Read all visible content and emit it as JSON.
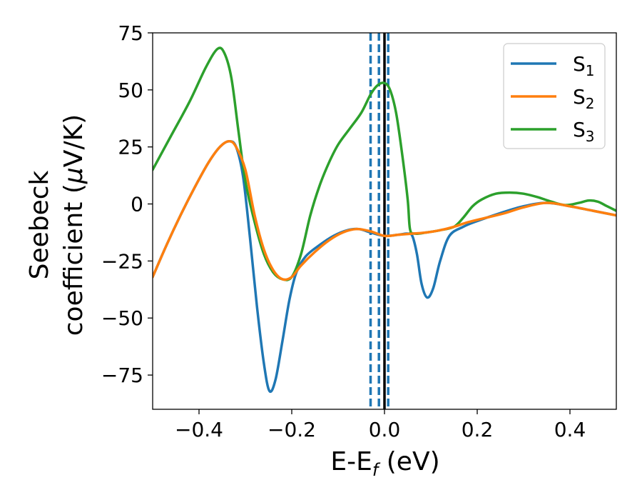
{
  "chart_data": {
    "type": "line",
    "xlabel": {
      "main": "E-E",
      "sub": "f",
      "suffix": " (eV)"
    },
    "ylabel": {
      "line1": "Seebeck",
      "line2_prefix": "coefficient  (",
      "mu": "μ",
      "line2_suffix": "V/K)"
    },
    "xlim": [
      -0.5,
      0.5
    ],
    "ylim": [
      -90,
      75
    ],
    "xticks": [
      {
        "value": -0.4,
        "label": "−0.4"
      },
      {
        "value": -0.2,
        "label": "−0.2"
      },
      {
        "value": 0.0,
        "label": "0.0"
      },
      {
        "value": 0.2,
        "label": "0.2"
      },
      {
        "value": 0.4,
        "label": "0.4"
      }
    ],
    "yticks": [
      {
        "value": 75,
        "label": "75"
      },
      {
        "value": 50,
        "label": "50"
      },
      {
        "value": 25,
        "label": "25"
      },
      {
        "value": 0,
        "label": "0"
      },
      {
        "value": -25,
        "label": "−25"
      },
      {
        "value": -50,
        "label": "−50"
      },
      {
        "value": -75,
        "label": "−75"
      }
    ],
    "grid": false,
    "legend_position": "top-right",
    "vlines": [
      {
        "x": -0.03,
        "style": "dashed",
        "color": "#1f77b4"
      },
      {
        "x": -0.012,
        "style": "dashed",
        "color": "#1f77b4"
      },
      {
        "x": 0.008,
        "style": "dashed",
        "color": "#1f77b4"
      },
      {
        "x": 0.0,
        "style": "solid",
        "color": "#000000"
      }
    ],
    "series": [
      {
        "name": "S",
        "sub": "1",
        "color": "#1f77b4",
        "points": [
          [
            -0.5,
            -32
          ],
          [
            -0.47,
            -18
          ],
          [
            -0.44,
            -5
          ],
          [
            -0.41,
            7
          ],
          [
            -0.38,
            18
          ],
          [
            -0.355,
            25
          ],
          [
            -0.335,
            27.5
          ],
          [
            -0.32,
            25
          ],
          [
            -0.305,
            12
          ],
          [
            -0.29,
            -15
          ],
          [
            -0.275,
            -45
          ],
          [
            -0.26,
            -70
          ],
          [
            -0.248,
            -82
          ],
          [
            -0.235,
            -77
          ],
          [
            -0.22,
            -60
          ],
          [
            -0.205,
            -42
          ],
          [
            -0.19,
            -30
          ],
          [
            -0.17,
            -23
          ],
          [
            -0.14,
            -18
          ],
          [
            -0.11,
            -14
          ],
          [
            -0.08,
            -11.5
          ],
          [
            -0.055,
            -11
          ],
          [
            -0.03,
            -12.5
          ],
          [
            0.0,
            -14
          ],
          [
            0.03,
            -13.5
          ],
          [
            0.05,
            -13
          ],
          [
            0.06,
            -14
          ],
          [
            0.07,
            -22
          ],
          [
            0.08,
            -35
          ],
          [
            0.092,
            -41
          ],
          [
            0.105,
            -37
          ],
          [
            0.12,
            -25
          ],
          [
            0.14,
            -14
          ],
          [
            0.17,
            -10
          ],
          [
            0.2,
            -7.5
          ],
          [
            0.25,
            -4
          ],
          [
            0.3,
            -1
          ],
          [
            0.35,
            0.5
          ],
          [
            0.4,
            -1
          ],
          [
            0.45,
            -3
          ],
          [
            0.5,
            -5
          ]
        ]
      },
      {
        "name": "S",
        "sub": "2",
        "color": "#ff7f0e",
        "points": [
          [
            -0.5,
            -32
          ],
          [
            -0.47,
            -18
          ],
          [
            -0.44,
            -5
          ],
          [
            -0.41,
            7
          ],
          [
            -0.38,
            18
          ],
          [
            -0.355,
            25
          ],
          [
            -0.335,
            27.5
          ],
          [
            -0.32,
            25
          ],
          [
            -0.3,
            15
          ],
          [
            -0.28,
            -5
          ],
          [
            -0.26,
            -20
          ],
          [
            -0.24,
            -29
          ],
          [
            -0.22,
            -33
          ],
          [
            -0.2,
            -32
          ],
          [
            -0.18,
            -27
          ],
          [
            -0.15,
            -21
          ],
          [
            -0.12,
            -16
          ],
          [
            -0.09,
            -12.5
          ],
          [
            -0.06,
            -11
          ],
          [
            -0.03,
            -12
          ],
          [
            0.0,
            -14
          ],
          [
            0.03,
            -13.5
          ],
          [
            0.06,
            -13
          ],
          [
            0.09,
            -12.5
          ],
          [
            0.12,
            -11.5
          ],
          [
            0.15,
            -10
          ],
          [
            0.18,
            -8
          ],
          [
            0.22,
            -6
          ],
          [
            0.26,
            -4
          ],
          [
            0.3,
            -1.5
          ],
          [
            0.35,
            0.5
          ],
          [
            0.4,
            -1
          ],
          [
            0.45,
            -3
          ],
          [
            0.5,
            -5
          ]
        ]
      },
      {
        "name": "S",
        "sub": "3",
        "color": "#2ca02c",
        "points": [
          [
            -0.5,
            15
          ],
          [
            -0.46,
            30
          ],
          [
            -0.42,
            45
          ],
          [
            -0.385,
            60
          ],
          [
            -0.36,
            68
          ],
          [
            -0.345,
            66
          ],
          [
            -0.33,
            55
          ],
          [
            -0.315,
            32
          ],
          [
            -0.3,
            10
          ],
          [
            -0.28,
            -8
          ],
          [
            -0.26,
            -22
          ],
          [
            -0.24,
            -30
          ],
          [
            -0.22,
            -33
          ],
          [
            -0.2,
            -32
          ],
          [
            -0.18,
            -22
          ],
          [
            -0.16,
            -5
          ],
          [
            -0.14,
            8
          ],
          [
            -0.12,
            18
          ],
          [
            -0.1,
            26
          ],
          [
            -0.075,
            33
          ],
          [
            -0.05,
            40
          ],
          [
            -0.03,
            48
          ],
          [
            -0.015,
            52
          ],
          [
            0.0,
            53
          ],
          [
            0.012,
            50
          ],
          [
            0.025,
            40
          ],
          [
            0.038,
            22
          ],
          [
            0.05,
            2
          ],
          [
            0.055,
            -11
          ],
          [
            0.065,
            -13
          ],
          [
            0.09,
            -12.5
          ],
          [
            0.12,
            -11.5
          ],
          [
            0.15,
            -10
          ],
          [
            0.17,
            -6
          ],
          [
            0.19,
            -1
          ],
          [
            0.21,
            2
          ],
          [
            0.24,
            4.5
          ],
          [
            0.27,
            5
          ],
          [
            0.3,
            4.5
          ],
          [
            0.33,
            3
          ],
          [
            0.36,
            1
          ],
          [
            0.39,
            -0.5
          ],
          [
            0.42,
            0.5
          ],
          [
            0.44,
            1.5
          ],
          [
            0.46,
            1
          ],
          [
            0.48,
            -1
          ],
          [
            0.5,
            -3
          ]
        ]
      }
    ]
  }
}
